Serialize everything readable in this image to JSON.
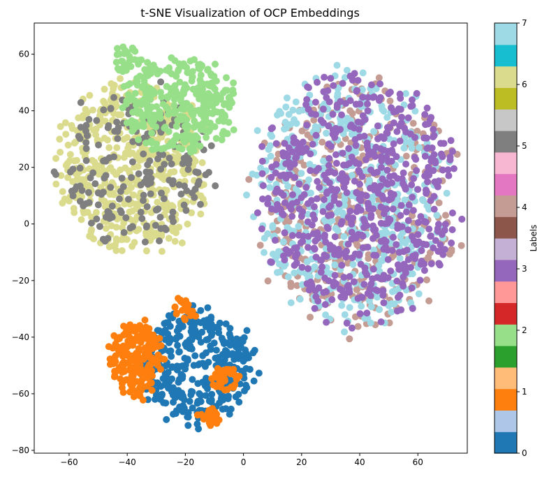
{
  "chart_data": {
    "type": "scatter",
    "title": "t-SNE Visualization of OCP Embeddings",
    "xlabel": "",
    "ylabel": "",
    "xlim": [
      -72,
      77
    ],
    "ylim": [
      -81,
      71
    ],
    "xticks": [
      -60,
      -40,
      -20,
      0,
      20,
      40,
      60
    ],
    "yticks": [
      -80,
      -60,
      -40,
      -20,
      0,
      20,
      40,
      60
    ],
    "grid": false,
    "clusters": [
      {
        "label": 0,
        "color": "#1f77b4",
        "shape": "ellipse",
        "center": [
          -16,
          -50
        ],
        "radius": [
          19,
          20
        ],
        "count": 360,
        "seed": 11
      },
      {
        "label": 1,
        "color": "#ff7f0e",
        "shape": "ellipse",
        "center": [
          -37,
          -48
        ],
        "radius": [
          9,
          13
        ],
        "count": 200,
        "seed": 12
      },
      {
        "label": 1,
        "color": "#ff7f0e",
        "shape": "ellipse",
        "center": [
          -20,
          -30
        ],
        "radius": [
          4,
          4
        ],
        "count": 25,
        "seed": 13
      },
      {
        "label": 1,
        "color": "#ff7f0e",
        "shape": "ellipse",
        "center": [
          -6,
          -55
        ],
        "radius": [
          5,
          5
        ],
        "count": 40,
        "seed": 14
      },
      {
        "label": 1,
        "color": "#ff7f0e",
        "shape": "ellipse",
        "center": [
          -12,
          -68
        ],
        "radius": [
          4,
          3
        ],
        "count": 25,
        "seed": 15
      },
      {
        "label": 4,
        "color": "#c49c94",
        "shape": "ellipse",
        "center": [
          39,
          6
        ],
        "radius": [
          33,
          43
        ],
        "count": 420,
        "seed": 21
      },
      {
        "label": 7,
        "color": "#9edae5",
        "shape": "ellipse",
        "center": [
          36,
          8
        ],
        "radius": [
          32,
          44
        ],
        "count": 520,
        "seed": 22
      },
      {
        "label": 3,
        "color": "#9467bd",
        "shape": "ellipse",
        "center": [
          40,
          10
        ],
        "radius": [
          33,
          42
        ],
        "count": 620,
        "seed": 23
      },
      {
        "label": 6,
        "color": "#dbdb8d",
        "shape": "ellipse",
        "center": [
          -38,
          20
        ],
        "radius": [
          25,
          30
        ],
        "count": 520,
        "seed": 31
      },
      {
        "label": 5,
        "color": "#7f7f7f",
        "shape": "ellipse",
        "center": [
          -37,
          20
        ],
        "radius": [
          25,
          28
        ],
        "count": 200,
        "seed": 32
      },
      {
        "label": 2,
        "color": "#98df8a",
        "shape": "ellipse",
        "center": [
          -22,
          42
        ],
        "radius": [
          20,
          16
        ],
        "count": 340,
        "seed": 33
      },
      {
        "label": 2,
        "color": "#98df8a",
        "shape": "ellipse",
        "center": [
          -40,
          58
        ],
        "radius": [
          5,
          5
        ],
        "count": 30,
        "seed": 34
      }
    ],
    "colorbar": {
      "label": "Labels",
      "range": [
        0,
        7
      ],
      "ticks": [
        "0",
        "1",
        "2",
        "3",
        "4",
        "5",
        "6",
        "7"
      ],
      "colors": [
        "#1f77b4",
        "#aec7e8",
        "#ff7f0e",
        "#ffbb78",
        "#2ca02c",
        "#98df8a",
        "#d62728",
        "#ff9896",
        "#9467bd",
        "#c5b0d5",
        "#8c564b",
        "#c49c94",
        "#e377c2",
        "#f7b6d2",
        "#7f7f7f",
        "#c7c7c7",
        "#bcbd22",
        "#dbdb8d",
        "#17becf",
        "#9edae5"
      ]
    }
  }
}
